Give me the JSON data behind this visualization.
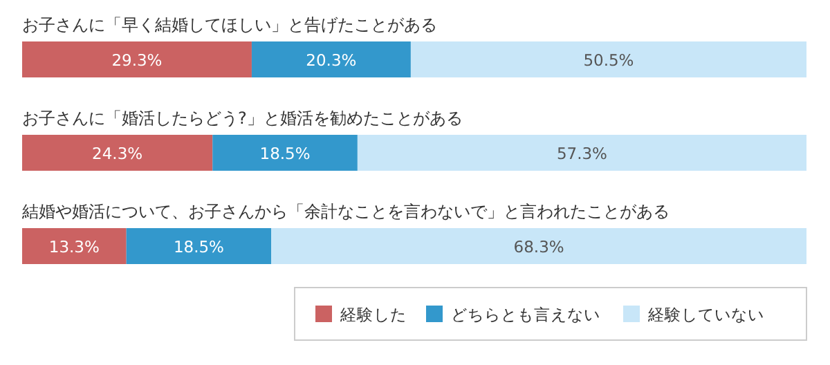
{
  "chart_data": {
    "type": "bar",
    "orientation": "horizontal",
    "stacked": true,
    "categories": [
      "お子さんに「早く結婚してほしい」と告げたことがある",
      "お子さんに「婚活したらどう?」と婚活を勧めたことがある",
      "結婚や婚活について、お子さんから「余計なことを言わないで」と言われたことがある"
    ],
    "series": [
      {
        "name": "経験した",
        "color": "#cb6262",
        "values": [
          29.3,
          24.3,
          13.3
        ],
        "value_labels": [
          "29.3%",
          "24.3%",
          "13.3%"
        ]
      },
      {
        "name": "どちらとも言えない",
        "color": "#3398cc",
        "values": [
          20.3,
          18.5,
          18.5
        ],
        "value_labels": [
          "20.3%",
          "18.5%",
          "18.5%"
        ]
      },
      {
        "name": "経験していない",
        "color": "#c8e6f8",
        "values": [
          50.5,
          57.3,
          68.3
        ],
        "value_labels": [
          "50.5%",
          "57.3%",
          "68.3%"
        ]
      }
    ],
    "legend": "bottom right"
  }
}
